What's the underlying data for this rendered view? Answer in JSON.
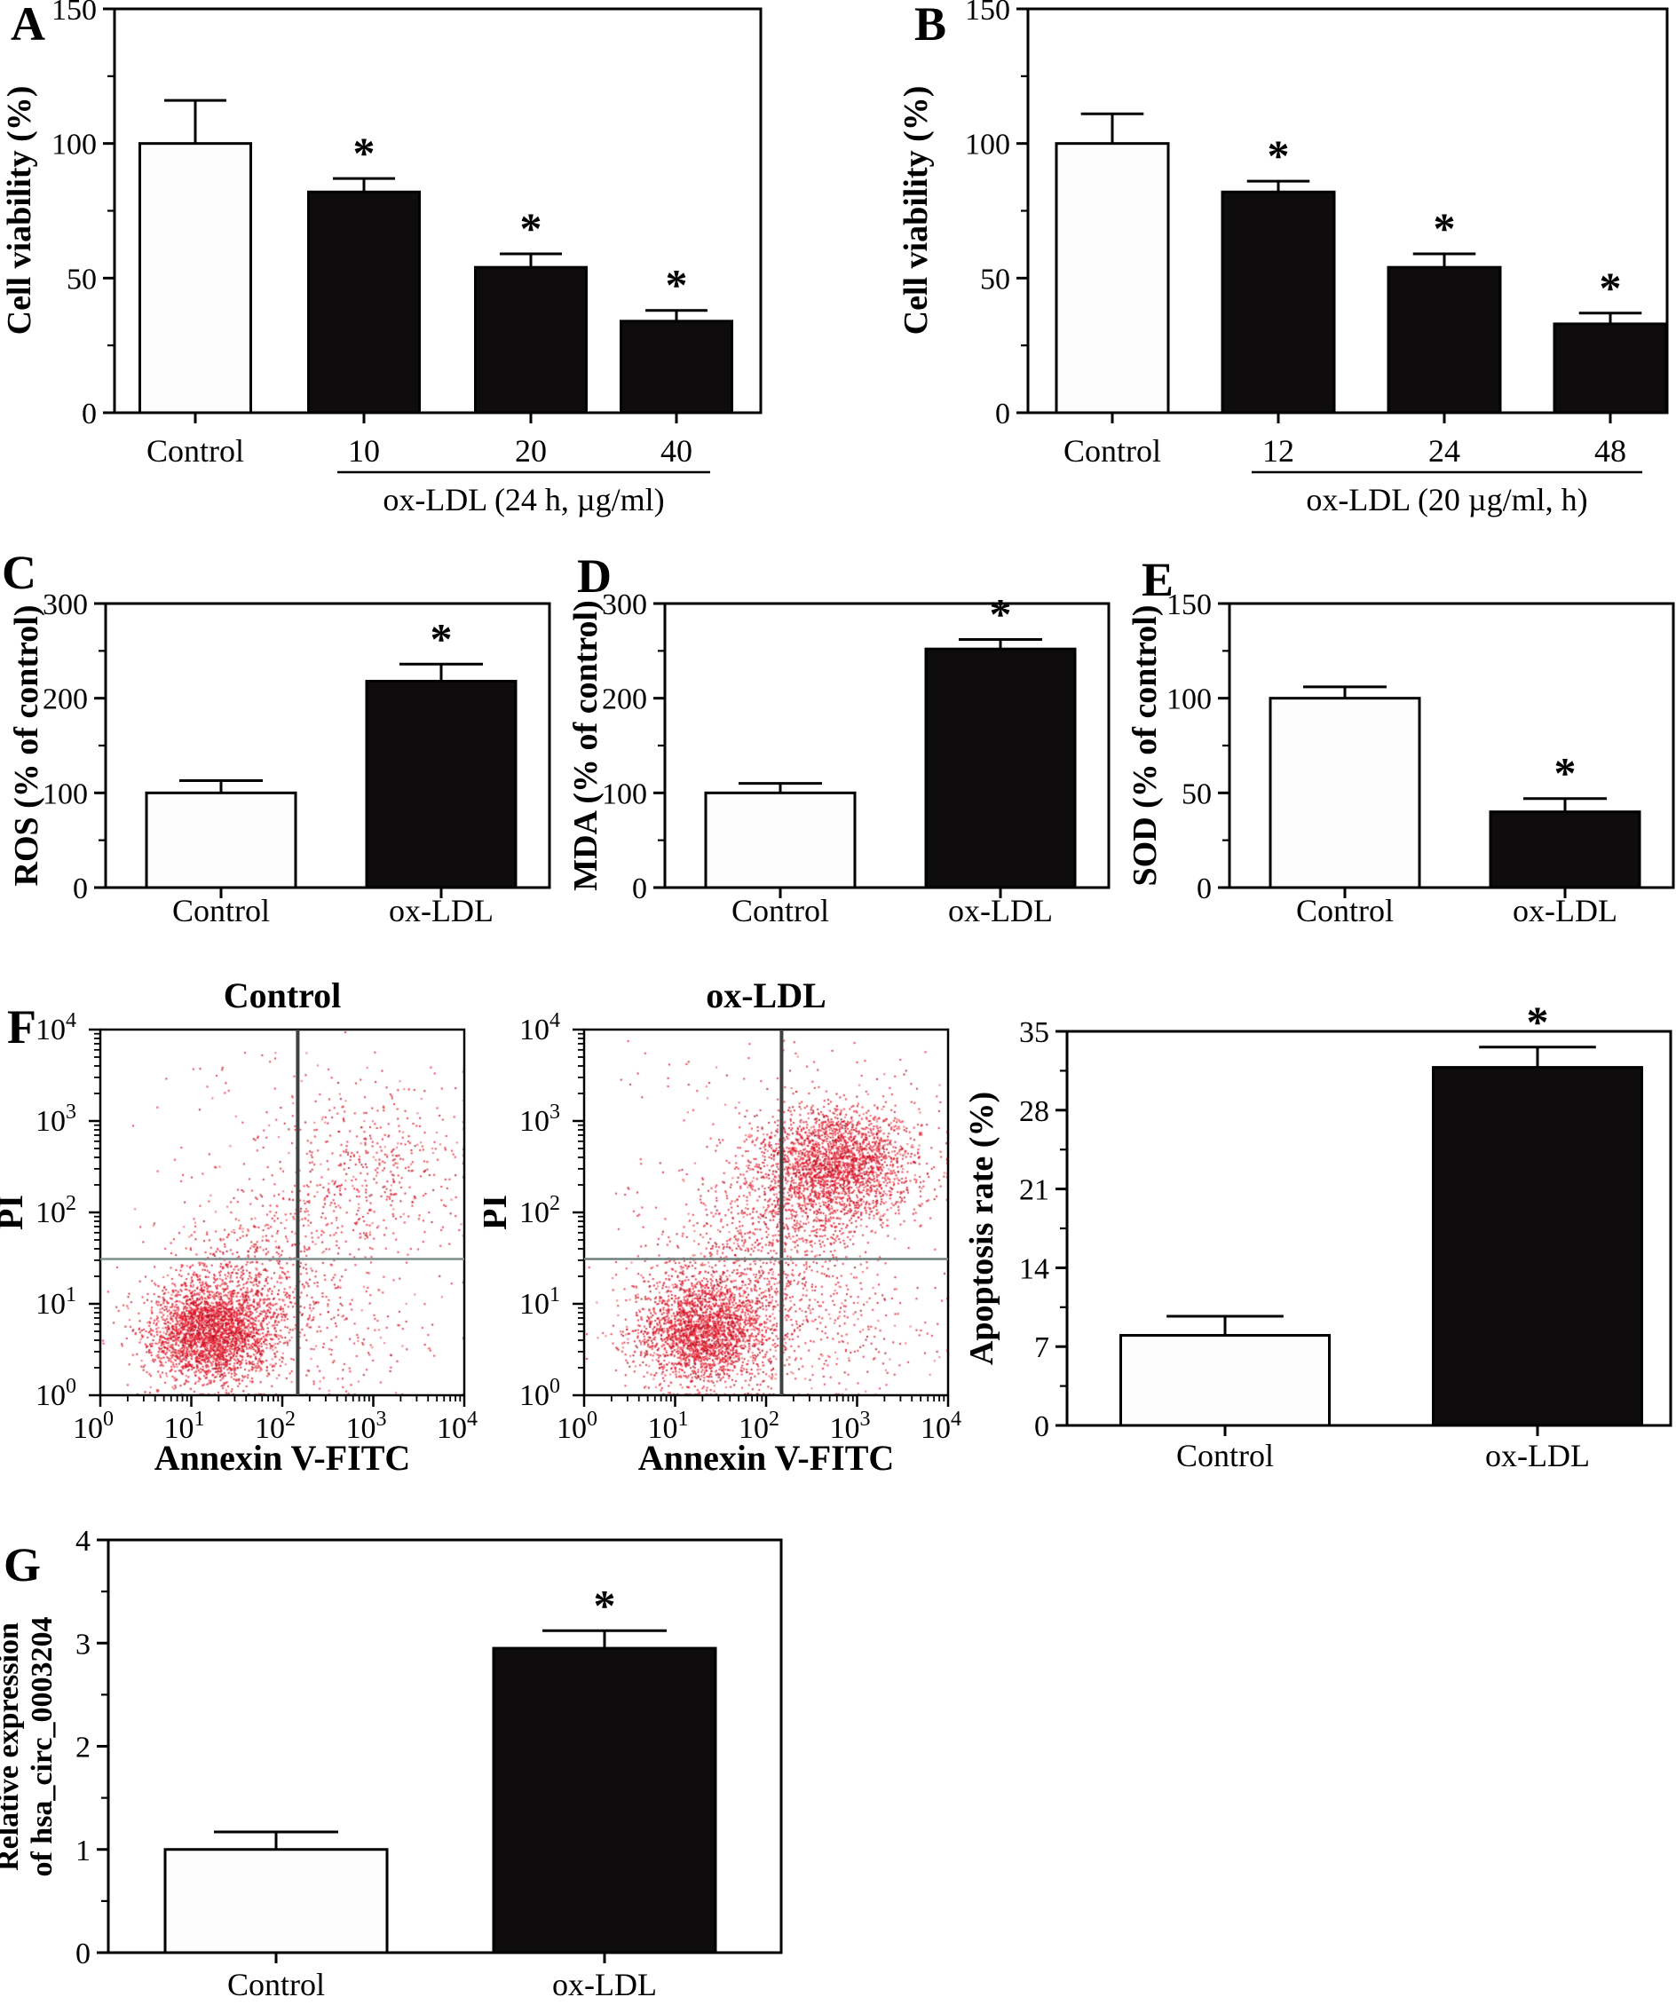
{
  "figure_background": "#ffffff",
  "chart_data": [
    {
      "panel_letter": "A",
      "type": "bar",
      "ylabel": "Cell viability (%)",
      "ylim": [
        0,
        150
      ],
      "yticks": [
        0,
        50,
        100,
        150
      ],
      "categories": [
        "Control",
        "10",
        "20",
        "40"
      ],
      "values": [
        100,
        82,
        54,
        34
      ],
      "errors": [
        16,
        5,
        5,
        4
      ],
      "bar_fill": [
        "white",
        "black",
        "black",
        "black"
      ],
      "significance": [
        "",
        "*",
        "*",
        "*"
      ],
      "group_label": "ox-LDL (24 h, µg/ml)",
      "group_indices": [
        1,
        3
      ]
    },
    {
      "panel_letter": "B",
      "type": "bar",
      "ylabel": "Cell viability (%)",
      "ylim": [
        0,
        150
      ],
      "yticks": [
        0,
        50,
        100,
        150
      ],
      "categories": [
        "Control",
        "12",
        "24",
        "48"
      ],
      "values": [
        100,
        82,
        54,
        33
      ],
      "errors": [
        11,
        4,
        5,
        4
      ],
      "bar_fill": [
        "white",
        "black",
        "black",
        "black"
      ],
      "significance": [
        "",
        "*",
        "*",
        "*"
      ],
      "group_label": "ox-LDL (20 µg/ml, h)",
      "group_indices": [
        1,
        3
      ]
    },
    {
      "panel_letter": "C",
      "type": "bar",
      "ylabel": "ROS (% of control)",
      "ylim": [
        0,
        300
      ],
      "yticks": [
        0,
        100,
        200,
        300
      ],
      "categories": [
        "Control",
        "ox-LDL"
      ],
      "values": [
        100,
        218
      ],
      "errors": [
        13,
        18
      ],
      "bar_fill": [
        "white",
        "black"
      ],
      "significance": [
        "",
        "*"
      ]
    },
    {
      "panel_letter": "D",
      "type": "bar",
      "ylabel": "MDA (% of control)",
      "ylim": [
        0,
        300
      ],
      "yticks": [
        0,
        100,
        200,
        300
      ],
      "categories": [
        "Control",
        "ox-LDL"
      ],
      "values": [
        100,
        252
      ],
      "errors": [
        10,
        10
      ],
      "bar_fill": [
        "white",
        "black"
      ],
      "significance": [
        "",
        "*"
      ]
    },
    {
      "panel_letter": "E",
      "type": "bar",
      "ylabel": "SOD (% of control)",
      "ylim": [
        0,
        150
      ],
      "yticks": [
        0,
        50,
        100,
        150
      ],
      "categories": [
        "Control",
        "ox-LDL"
      ],
      "values": [
        100,
        40
      ],
      "errors": [
        6,
        7
      ],
      "bar_fill": [
        "white",
        "black"
      ],
      "significance": [
        "",
        "*"
      ]
    },
    {
      "panel_letter": "F",
      "type": "scatter",
      "title": "Control",
      "xlabel": "Annexin V-FITC",
      "ylabel": "PI",
      "x_log_range": [
        0,
        4
      ],
      "y_log_range": [
        0,
        4
      ],
      "gate_x_log": 2.17,
      "gate_y_log": 1.49,
      "gate_color_v": "#3d4140",
      "gate_color_h": "#7c8f8d",
      "dot_colors": [
        "#e81a2c",
        "#c41225",
        "#f05a63",
        "#9e0f20"
      ],
      "dot_color_weights": [
        0.55,
        0.2,
        0.15,
        0.1
      ],
      "seed": 7,
      "clusters": [
        {
          "n": 2600,
          "cx": 1.22,
          "cy": 0.68,
          "sx": 0.34,
          "sy": 0.27
        },
        {
          "n": 700,
          "cx": 1.6,
          "cy": 1.15,
          "sx": 0.5,
          "sy": 0.42
        },
        {
          "n": 180,
          "cx": 2.2,
          "cy": 1.85,
          "sx": 0.55,
          "sy": 0.5
        },
        {
          "n": 420,
          "cx": 2.9,
          "cy": 2.5,
          "sx": 0.48,
          "sy": 0.45
        },
        {
          "n": 130,
          "cx": 2.7,
          "cy": 0.75,
          "sx": 0.55,
          "sy": 0.45
        },
        {
          "n": 150,
          "uniform": true,
          "x0": 0.3,
          "x1": 3.9,
          "y0": 0.2,
          "y1": 3.8
        }
      ]
    },
    {
      "type": "scatter",
      "title": "ox-LDL",
      "xlabel": "Annexin V-FITC",
      "ylabel": "PI",
      "x_log_range": [
        0,
        4
      ],
      "y_log_range": [
        0,
        4
      ],
      "gate_x_log": 2.17,
      "gate_y_log": 1.49,
      "gate_color_v": "#3d4140",
      "gate_color_h": "#6f807e",
      "dot_colors": [
        "#e81a2c",
        "#c41225",
        "#f05a63",
        "#9e0f20"
      ],
      "dot_color_weights": [
        0.55,
        0.2,
        0.15,
        0.1
      ],
      "seed": 99,
      "clusters": [
        {
          "n": 2200,
          "cx": 1.28,
          "cy": 0.7,
          "sx": 0.36,
          "sy": 0.29
        },
        {
          "n": 600,
          "cx": 1.65,
          "cy": 1.2,
          "sx": 0.5,
          "sy": 0.5
        },
        {
          "n": 2100,
          "cx": 2.8,
          "cy": 2.55,
          "sx": 0.42,
          "sy": 0.32
        },
        {
          "n": 550,
          "cx": 2.4,
          "cy": 2.25,
          "sx": 0.42,
          "sy": 0.38
        },
        {
          "n": 300,
          "cx": 2.15,
          "cy": 1.55,
          "sx": 0.55,
          "sy": 0.5
        },
        {
          "n": 220,
          "cx": 2.75,
          "cy": 0.85,
          "sx": 0.55,
          "sy": 0.5
        },
        {
          "n": 200,
          "uniform": true,
          "x0": 0.3,
          "x1": 3.9,
          "y0": 0.2,
          "y1": 3.9
        }
      ]
    },
    {
      "type": "bar",
      "ylabel": "Apoptosis rate (%)",
      "ylim": [
        0,
        35
      ],
      "yticks": [
        0,
        7,
        14,
        21,
        28,
        35
      ],
      "categories": [
        "Control",
        "ox-LDL"
      ],
      "values": [
        8,
        31.8
      ],
      "errors": [
        1.7,
        1.8
      ],
      "bar_fill": [
        "white",
        "black"
      ],
      "significance": [
        "",
        "*"
      ]
    },
    {
      "panel_letter": "G",
      "type": "bar",
      "ylabel_lines": [
        "Relative expression",
        "of hsa_circ_0003204"
      ],
      "ylim": [
        0,
        4
      ],
      "yticks": [
        0,
        1,
        2,
        3,
        4
      ],
      "categories": [
        "Control",
        "ox-LDL"
      ],
      "values": [
        1.0,
        2.95
      ],
      "errors": [
        0.17,
        0.17
      ],
      "bar_fill": [
        "white",
        "black"
      ],
      "significance": [
        "",
        "*"
      ]
    }
  ],
  "colors": {
    "bar_black": "#0e0c0c",
    "bar_white": "#fdfdfd",
    "axis": "#000000"
  }
}
